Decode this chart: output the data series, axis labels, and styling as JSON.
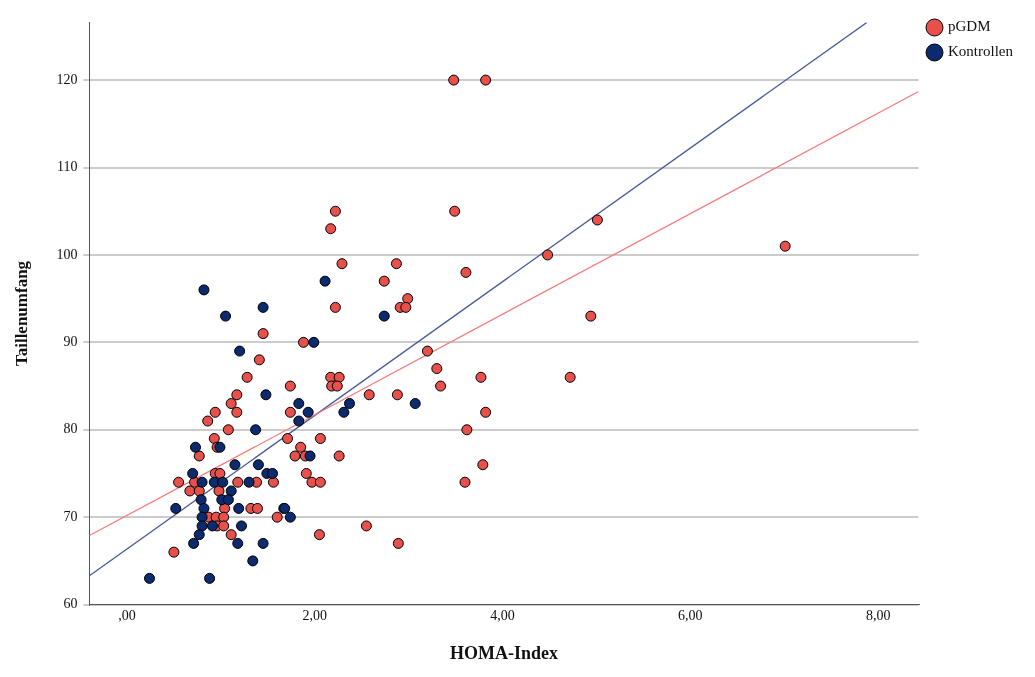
{
  "chart_data": {
    "type": "scatter",
    "xlabel": "HOMA-Index",
    "ylabel": "Taillenumfang",
    "xlim": [
      -0.4,
      8.43
    ],
    "ylim": [
      60,
      126.6
    ],
    "xticks": [
      {
        "value": 0,
        "label": ",00"
      },
      {
        "value": 2,
        "label": "2,00"
      },
      {
        "value": 4,
        "label": "4,00"
      },
      {
        "value": 6,
        "label": "6,00"
      },
      {
        "value": 8,
        "label": "8,00"
      }
    ],
    "yticks": [
      60,
      70,
      80,
      90,
      100,
      110,
      120
    ],
    "grid": "y",
    "legend": "top right",
    "marker": "circle",
    "series": [
      {
        "name": "pGDM",
        "color": "#e8504c",
        "x": [
          1.45,
          1.41,
          1.28,
          1.17,
          1.11,
          1.17,
          0.94,
          0.86,
          1.08,
          0.93,
          0.96,
          0.77,
          0.94,
          0.99,
          0.55,
          0.72,
          1.18,
          1.38,
          1.56,
          0.67,
          0.77,
          0.98,
          1.04,
          1.32,
          1.39,
          0.87,
          0.95,
          1.03,
          1.6,
          0.96,
          1.03,
          1.11,
          0.5,
          2.22,
          2.17,
          2.29,
          2.87,
          2.74,
          2.99,
          2.91,
          2.97,
          2.22,
          1.88,
          3.2,
          3.3,
          2.17,
          2.26,
          2.18,
          2.24,
          1.74,
          3.34,
          2.58,
          2.88,
          1.74,
          1.71,
          2.06,
          1.85,
          1.79,
          1.9,
          2.26,
          1.91,
          1.97,
          2.06,
          2.05,
          2.55,
          2.89,
          3.49,
          3.61,
          3.48,
          3.82,
          5.01,
          4.48,
          7.01,
          4.94,
          3.77,
          4.72,
          3.82,
          3.62,
          3.79,
          3.6
        ],
        "values": [
          91,
          88,
          86,
          84,
          83,
          82,
          82,
          81,
          80,
          79,
          78,
          77,
          75,
          75,
          74,
          74,
          74,
          74,
          74,
          73,
          73,
          73,
          71,
          71,
          71,
          70,
          70,
          70,
          70,
          69,
          69,
          68,
          66,
          105,
          103,
          99,
          99,
          97,
          95,
          94,
          94,
          94,
          90,
          89,
          87,
          86,
          86,
          85,
          85,
          85,
          85,
          84,
          84,
          82,
          79,
          79,
          78,
          77,
          77,
          77,
          75,
          74,
          74,
          68,
          69,
          67,
          105,
          98,
          120,
          120,
          104,
          100,
          101,
          93,
          86,
          86,
          82,
          80,
          76,
          74
        ]
      },
      {
        "name": "Kontrollen",
        "color": "#0c2a6e",
        "x": [
          0.82,
          1.45,
          1.05,
          1.2,
          1.48,
          1.37,
          0.73,
          0.99,
          1.15,
          1.4,
          0.7,
          1.49,
          1.55,
          0.8,
          0.93,
          1.02,
          1.3,
          1.11,
          0.79,
          1.01,
          1.08,
          0.52,
          0.82,
          1.19,
          1.67,
          0.8,
          0.8,
          0.91,
          1.22,
          0.77,
          0.71,
          1.18,
          1.45,
          1.34,
          0.24,
          0.88,
          2.11,
          2.74,
          1.99,
          1.83,
          1.93,
          1.83,
          2.37,
          2.31,
          3.07,
          1.95,
          1.68,
          1.74
        ],
        "values": [
          96,
          94,
          93,
          89,
          84,
          80,
          78,
          78,
          76,
          76,
          75,
          75,
          75,
          74,
          74,
          74,
          74,
          73,
          72,
          72,
          72,
          71,
          71,
          71,
          71,
          70,
          69,
          69,
          69,
          68,
          67,
          67,
          67,
          65,
          63,
          63,
          97,
          93,
          90,
          83,
          82,
          81,
          83,
          82,
          83,
          77,
          71,
          70
        ]
      },
      {
        "type": "line",
        "marker": "none",
        "color": "#f47c7c",
        "x": [
          -0.4,
          8.43
        ],
        "values": [
          67.9,
          118.7
        ]
      },
      {
        "type": "line",
        "marker": "none",
        "color": "#4a5a9c",
        "x": [
          -0.4,
          7.88
        ],
        "values": [
          63.3,
          126.6
        ]
      }
    ]
  }
}
